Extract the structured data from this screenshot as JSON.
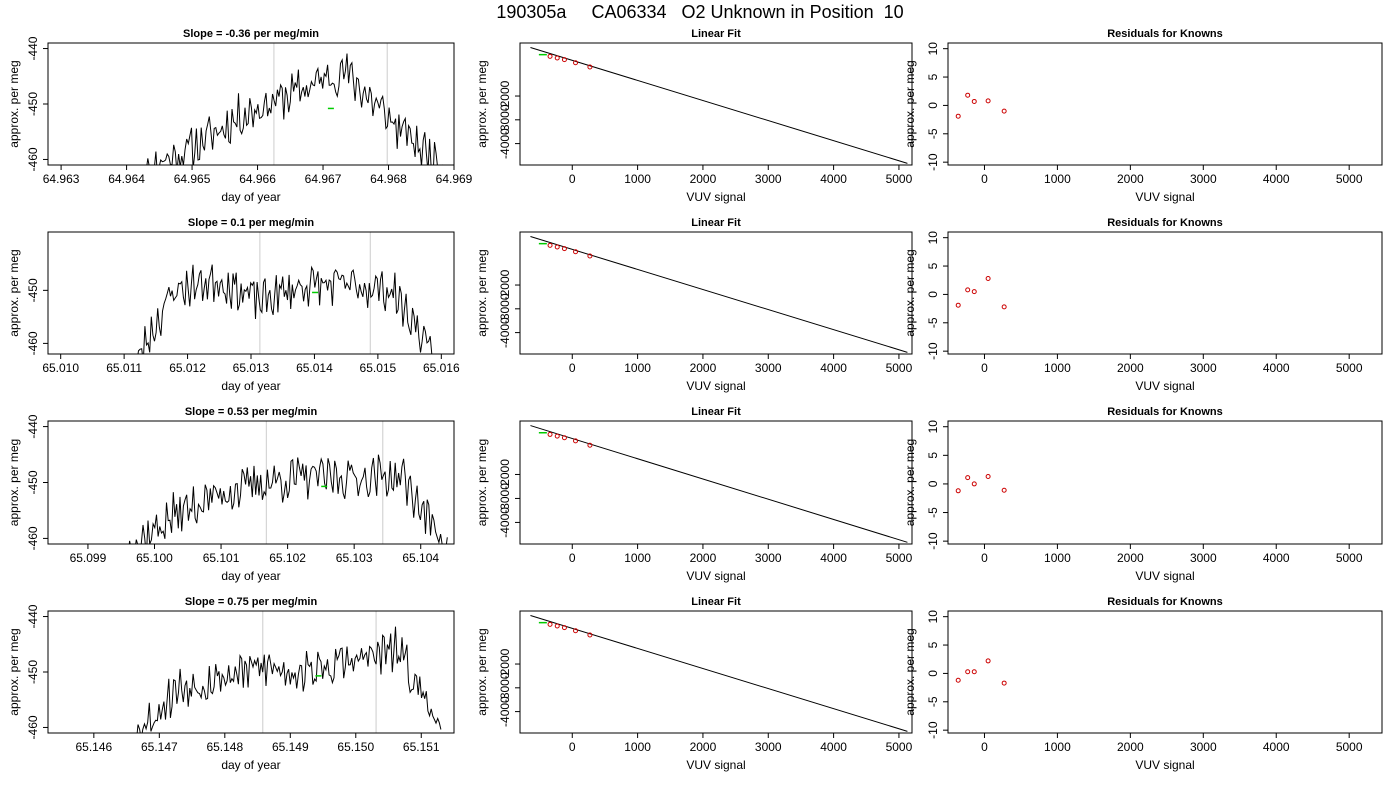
{
  "page_title": "190305a     CA06334   O2 Unknown in Position  10",
  "colors": {
    "trace": "#000000",
    "marker_lines": "#cccccc",
    "unknown_point": "#00cc00",
    "known_points": "#cc0000",
    "fit_line": "#000000"
  },
  "chart_data": [
    {
      "type": "line",
      "title": "Slope =  -0.36  per meg/min",
      "xlabel": "day of year",
      "ylabel": "approx. per meg",
      "xlim": [
        64.9628,
        64.969
      ],
      "ylim": [
        -461,
        -439
      ],
      "xticks": [
        64.963,
        64.964,
        64.965,
        64.966,
        64.967,
        64.968,
        64.969
      ],
      "xtick_labels": [
        "64.963",
        "64.964",
        "64.965",
        "64.966",
        "64.967",
        "64.968",
        "64.969"
      ],
      "yticks": [
        -440,
        -450,
        -460
      ],
      "ytick_labels": [
        "-440",
        "-450",
        "-460"
      ],
      "vlines": [
        64.96625,
        64.96798
      ],
      "series_x_start": 64.9642,
      "series_x_end": 64.9689,
      "anchors": [
        -462,
        -458,
        -452,
        -448,
        -444,
        -454,
        -462
      ],
      "unknown_point": [
        64.96712,
        -450.8
      ],
      "seed": 11
    },
    {
      "type": "line",
      "title": "Linear Fit",
      "xlabel": "VUV signal",
      "ylabel": "approx. per meg",
      "xlim": [
        -800,
        5200
      ],
      "ylim": [
        -4900,
        230
      ],
      "xticks": [
        0,
        1000,
        2000,
        3000,
        4000,
        5000
      ],
      "xtick_labels": [
        "0",
        "1000",
        "2000",
        "3000",
        "4000",
        "5000"
      ],
      "yticks": [
        -2000,
        -3000,
        -4000
      ],
      "ytick_labels": [
        "-2000",
        "-3000",
        "-4000"
      ],
      "fit_line": [
        [
          -640,
          40
        ],
        [
          5130,
          -4830
        ]
      ],
      "known_points": [
        [
          -340,
          -330
        ],
        [
          -230,
          -400
        ],
        [
          -120,
          -470
        ],
        [
          50,
          -600
        ],
        [
          270,
          -780
        ]
      ],
      "unknown_point": [
        -450,
        -260
      ]
    },
    {
      "type": "scatter",
      "title": "Residuals for Knowns",
      "xlabel": "VUV signal",
      "ylabel": "approx. per meg",
      "xlim": [
        -500,
        5450
      ],
      "ylim": [
        -10.5,
        11
      ],
      "xticks": [
        0,
        1000,
        2000,
        3000,
        4000,
        5000
      ],
      "xtick_labels": [
        "0",
        "1000",
        "2000",
        "3000",
        "4000",
        "5000"
      ],
      "yticks": [
        10,
        5,
        0,
        -5,
        -10
      ],
      "ytick_labels": [
        "10",
        "5",
        "0",
        "-5",
        "-10"
      ],
      "points": [
        [
          -360,
          -1.9
        ],
        [
          -230,
          1.8
        ],
        [
          -140,
          0.7
        ],
        [
          50,
          0.8
        ],
        [
          270,
          -1.0
        ]
      ]
    },
    {
      "type": "line",
      "title": "Slope =  0.1  per meg/min",
      "xlabel": "day of year",
      "ylabel": "approx. per meg",
      "xlim": [
        65.0098,
        65.0162
      ],
      "ylim": [
        -462,
        -439
      ],
      "xticks": [
        65.01,
        65.011,
        65.012,
        65.013,
        65.014,
        65.015,
        65.016
      ],
      "xtick_labels": [
        "65.010",
        "65.011",
        "65.012",
        "65.013",
        "65.014",
        "65.015",
        "65.016"
      ],
      "yticks": [
        -450,
        -460
      ],
      "ytick_labels": [
        "-450",
        "-460"
      ],
      "vlines": [
        65.01314,
        65.01488
      ],
      "series_x_start": 65.0111,
      "series_x_end": 65.0159,
      "anchors": [
        -465,
        -450,
        -448,
        -452,
        -449,
        -449,
        -450,
        -462
      ],
      "unknown_point": [
        65.01401,
        -450.4
      ],
      "seed": 23
    },
    {
      "type": "line",
      "title": "Linear Fit",
      "xlabel": "VUV signal",
      "ylabel": "approx. per meg",
      "xlim": [
        -800,
        5200
      ],
      "ylim": [
        -4900,
        230
      ],
      "xticks": [
        0,
        1000,
        2000,
        3000,
        4000,
        5000
      ],
      "xtick_labels": [
        "0",
        "1000",
        "2000",
        "3000",
        "4000",
        "5000"
      ],
      "yticks": [
        -2000,
        -3000,
        -4000
      ],
      "ytick_labels": [
        "-2000",
        "-3000",
        "-4000"
      ],
      "fit_line": [
        [
          -640,
          40
        ],
        [
          5130,
          -4830
        ]
      ],
      "known_points": [
        [
          -340,
          -330
        ],
        [
          -230,
          -400
        ],
        [
          -120,
          -470
        ],
        [
          50,
          -600
        ],
        [
          270,
          -780
        ]
      ],
      "unknown_point": [
        -450,
        -260
      ]
    },
    {
      "type": "scatter",
      "title": "Residuals for Knowns",
      "xlabel": "VUV signal",
      "ylabel": "approx. per meg",
      "xlim": [
        -500,
        5450
      ],
      "ylim": [
        -10.5,
        11
      ],
      "xticks": [
        0,
        1000,
        2000,
        3000,
        4000,
        5000
      ],
      "xtick_labels": [
        "0",
        "1000",
        "2000",
        "3000",
        "4000",
        "5000"
      ],
      "yticks": [
        10,
        5,
        0,
        -5,
        -10
      ],
      "ytick_labels": [
        "10",
        "5",
        "0",
        "-5",
        "-10"
      ],
      "points": [
        [
          -360,
          -1.9
        ],
        [
          -230,
          0.8
        ],
        [
          -140,
          0.5
        ],
        [
          50,
          2.8
        ],
        [
          270,
          -2.2
        ]
      ]
    },
    {
      "type": "line",
      "title": "Slope =  0.53  per meg/min",
      "xlabel": "day of year",
      "ylabel": "approx. per meg",
      "xlim": [
        65.0984,
        65.1045
      ],
      "ylim": [
        -461,
        -439
      ],
      "xticks": [
        65.099,
        65.1,
        65.101,
        65.102,
        65.103,
        65.104
      ],
      "xtick_labels": [
        "65.099",
        "65.100",
        "65.101",
        "65.102",
        "65.103",
        "65.104"
      ],
      "yticks": [
        -440,
        -450,
        -460
      ],
      "ytick_labels": [
        "-440",
        "-450",
        "-460"
      ],
      "vlines": [
        65.10168,
        65.10343
      ],
      "series_x_start": 65.0996,
      "series_x_end": 65.1044,
      "anchors": [
        -462,
        -456,
        -452,
        -450,
        -449,
        -449,
        -449,
        -462
      ],
      "unknown_point": [
        65.10255,
        -450.7
      ],
      "seed": 37
    },
    {
      "type": "line",
      "title": "Linear Fit",
      "xlabel": "VUV signal",
      "ylabel": "approx. per meg",
      "xlim": [
        -800,
        5200
      ],
      "ylim": [
        -4900,
        230
      ],
      "xticks": [
        0,
        1000,
        2000,
        3000,
        4000,
        5000
      ],
      "xtick_labels": [
        "0",
        "1000",
        "2000",
        "3000",
        "4000",
        "5000"
      ],
      "yticks": [
        -2000,
        -3000,
        -4000
      ],
      "ytick_labels": [
        "-2000",
        "-3000",
        "-4000"
      ],
      "fit_line": [
        [
          -640,
          40
        ],
        [
          5130,
          -4830
        ]
      ],
      "known_points": [
        [
          -340,
          -330
        ],
        [
          -230,
          -400
        ],
        [
          -120,
          -470
        ],
        [
          50,
          -600
        ],
        [
          270,
          -780
        ]
      ],
      "unknown_point": [
        -450,
        -260
      ]
    },
    {
      "type": "scatter",
      "title": "Residuals for Knowns",
      "xlabel": "VUV signal",
      "ylabel": "approx. per meg",
      "xlim": [
        -500,
        5450
      ],
      "ylim": [
        -10.5,
        11
      ],
      "xticks": [
        0,
        1000,
        2000,
        3000,
        4000,
        5000
      ],
      "xtick_labels": [
        "0",
        "1000",
        "2000",
        "3000",
        "4000",
        "5000"
      ],
      "yticks": [
        10,
        5,
        0,
        -5,
        -10
      ],
      "ytick_labels": [
        "10",
        "5",
        "0",
        "-5",
        "-10"
      ],
      "points": [
        [
          -360,
          -1.2
        ],
        [
          -230,
          1.1
        ],
        [
          -140,
          0.0
        ],
        [
          50,
          1.3
        ],
        [
          270,
          -1.1
        ]
      ]
    },
    {
      "type": "line",
      "title": "Slope =  0.75  per meg/min",
      "xlabel": "day of year",
      "ylabel": "approx. per meg",
      "xlim": [
        65.1453,
        65.1515
      ],
      "ylim": [
        -461,
        -439
      ],
      "xticks": [
        65.146,
        65.147,
        65.148,
        65.149,
        65.15,
        65.151
      ],
      "xtick_labels": [
        "65.146",
        "65.147",
        "65.148",
        "65.149",
        "65.150",
        "65.151"
      ],
      "yticks": [
        -440,
        -450,
        -460
      ],
      "ytick_labels": [
        "-440",
        "-450",
        "-460"
      ],
      "vlines": [
        65.14858,
        65.15031
      ],
      "series_x_start": 65.1466,
      "series_x_end": 65.1513,
      "anchors": [
        -462,
        -453,
        -451,
        -449,
        -450,
        -448,
        -446,
        -460
      ],
      "unknown_point": [
        65.14943,
        -450.7
      ],
      "seed": 53
    },
    {
      "type": "line",
      "title": "Linear Fit",
      "xlabel": "VUV signal",
      "ylabel": "approx. per meg",
      "xlim": [
        -800,
        5200
      ],
      "ylim": [
        -4900,
        230
      ],
      "xticks": [
        0,
        1000,
        2000,
        3000,
        4000,
        5000
      ],
      "xtick_labels": [
        "0",
        "1000",
        "2000",
        "3000",
        "4000",
        "5000"
      ],
      "yticks": [
        -2000,
        -3000,
        -4000
      ],
      "ytick_labels": [
        "-2000",
        "-3000",
        "-4000"
      ],
      "fit_line": [
        [
          -640,
          40
        ],
        [
          5130,
          -4830
        ]
      ],
      "known_points": [
        [
          -340,
          -330
        ],
        [
          -230,
          -400
        ],
        [
          -120,
          -470
        ],
        [
          50,
          -600
        ],
        [
          270,
          -780
        ]
      ],
      "unknown_point": [
        -450,
        -260
      ]
    },
    {
      "type": "scatter",
      "title": "Residuals for Knowns",
      "xlabel": "VUV signal",
      "ylabel": "approx. per meg",
      "xlim": [
        -500,
        5450
      ],
      "ylim": [
        -10.5,
        11
      ],
      "xticks": [
        0,
        1000,
        2000,
        3000,
        4000,
        5000
      ],
      "xtick_labels": [
        "0",
        "1000",
        "2000",
        "3000",
        "4000",
        "5000"
      ],
      "points": [
        [
          -360,
          -1.2
        ],
        [
          -230,
          0.3
        ],
        [
          -140,
          0.3
        ],
        [
          50,
          2.2
        ],
        [
          270,
          -1.7
        ]
      ],
      "yticks": [
        10,
        5,
        0,
        -5,
        -10
      ],
      "ytick_labels": [
        "10",
        "5",
        "0",
        "-5",
        "-10"
      ]
    }
  ]
}
